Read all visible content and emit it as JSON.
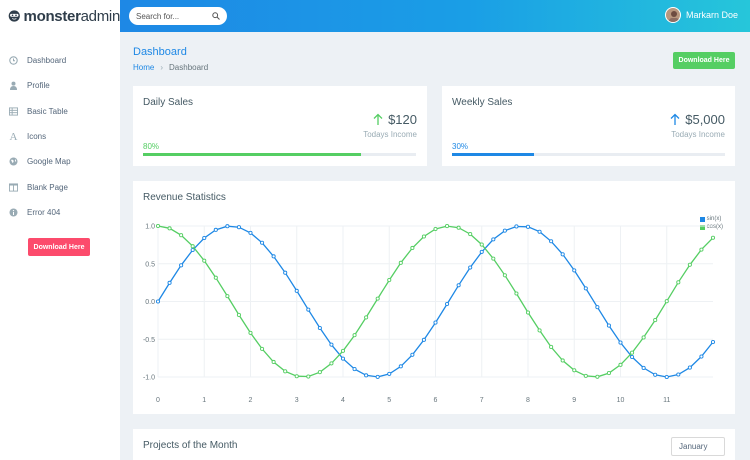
{
  "brand": {
    "name_bold": "monster",
    "name_light": "admin"
  },
  "search": {
    "placeholder": "Search for..."
  },
  "user": {
    "name": "Markarn Doe"
  },
  "sidebar": {
    "items": [
      {
        "label": "Dashboard",
        "icon": "clock-icon"
      },
      {
        "label": "Profile",
        "icon": "user-icon"
      },
      {
        "label": "Basic Table",
        "icon": "table-icon"
      },
      {
        "label": "Icons",
        "icon": "font-icon"
      },
      {
        "label": "Google Map",
        "icon": "globe-icon"
      },
      {
        "label": "Blank Page",
        "icon": "columns-icon"
      },
      {
        "label": "Error 404",
        "icon": "info-icon"
      }
    ],
    "download_label": "Download Here"
  },
  "page": {
    "title": "Dashboard",
    "breadcrumb_home": "Home",
    "breadcrumb_current": "Dashboard",
    "download_label": "Download Here"
  },
  "daily_sales": {
    "title": "Daily Sales",
    "amount": "$120",
    "subtitle": "Todays Income",
    "percent_label": "80%",
    "progress": 0.8,
    "color": "#55ce63"
  },
  "weekly_sales": {
    "title": "Weekly Sales",
    "amount": "$5,000",
    "subtitle": "Todays Income",
    "percent_label": "30%",
    "progress": 0.3,
    "color": "#1e88e5"
  },
  "revenue": {
    "title": "Revenue Statistics"
  },
  "projects": {
    "title": "Projects of the Month",
    "month": "January"
  },
  "chart_data": {
    "type": "line",
    "title": "Revenue Statistics",
    "x": [
      0,
      0.25,
      0.5,
      0.75,
      1,
      1.25,
      1.5,
      1.75,
      2,
      2.25,
      2.5,
      2.75,
      3,
      3.25,
      3.5,
      3.75,
      4,
      4.25,
      4.5,
      4.75,
      5,
      5.25,
      5.5,
      5.75,
      6,
      6.25,
      6.5,
      6.75,
      7,
      7.25,
      7.5,
      7.75,
      8,
      8.25,
      8.5,
      8.75,
      9,
      9.25,
      9.5,
      9.75,
      10,
      10.25,
      10.5,
      10.75,
      11,
      11.25,
      11.5,
      11.75,
      12
    ],
    "series": [
      {
        "name": "sin(x)",
        "color": "#1e88e5",
        "values": [
          0.0,
          0.247,
          0.479,
          0.682,
          0.841,
          0.949,
          0.997,
          0.984,
          0.909,
          0.778,
          0.598,
          0.381,
          0.141,
          -0.108,
          -0.351,
          -0.572,
          -0.757,
          -0.895,
          -0.978,
          -0.999,
          -0.959,
          -0.859,
          -0.706,
          -0.508,
          -0.279,
          -0.033,
          0.215,
          0.45,
          0.657,
          0.823,
          0.938,
          0.994,
          0.989,
          0.924,
          0.798,
          0.625,
          0.412,
          0.174,
          -0.075,
          -0.319,
          -0.544,
          -0.735,
          -0.88,
          -0.971,
          -1.0,
          -0.967,
          -0.875,
          -0.729,
          -0.537
        ]
      },
      {
        "name": "cos(x)",
        "color": "#55ce63",
        "values": [
          1.0,
          0.969,
          0.878,
          0.732,
          0.54,
          0.315,
          0.071,
          -0.178,
          -0.416,
          -0.628,
          -0.801,
          -0.925,
          -0.99,
          -0.994,
          -0.936,
          -0.82,
          -0.654,
          -0.446,
          -0.211,
          0.038,
          0.284,
          0.512,
          0.709,
          0.861,
          0.96,
          0.999,
          0.977,
          0.893,
          0.754,
          0.568,
          0.347,
          0.106,
          -0.146,
          -0.383,
          -0.602,
          -0.781,
          -0.911,
          -0.985,
          -0.997,
          -0.948,
          -0.839,
          -0.678,
          -0.476,
          -0.246,
          0.004,
          0.254,
          0.486,
          0.687,
          0.844
        ]
      }
    ],
    "ylim": [
      -1.0,
      1.0
    ],
    "xlim": [
      0,
      12
    ],
    "xticks": [
      0,
      1,
      2,
      3,
      4,
      5,
      6,
      7,
      8,
      9,
      10,
      11
    ],
    "yticks": [
      "1.0",
      "0.5",
      "0.0",
      "-0.5",
      "-1.0"
    ],
    "ytick_values": [
      1.0,
      0.5,
      0.0,
      -0.5,
      -1.0
    ],
    "grid": true,
    "legend": "top-right"
  }
}
